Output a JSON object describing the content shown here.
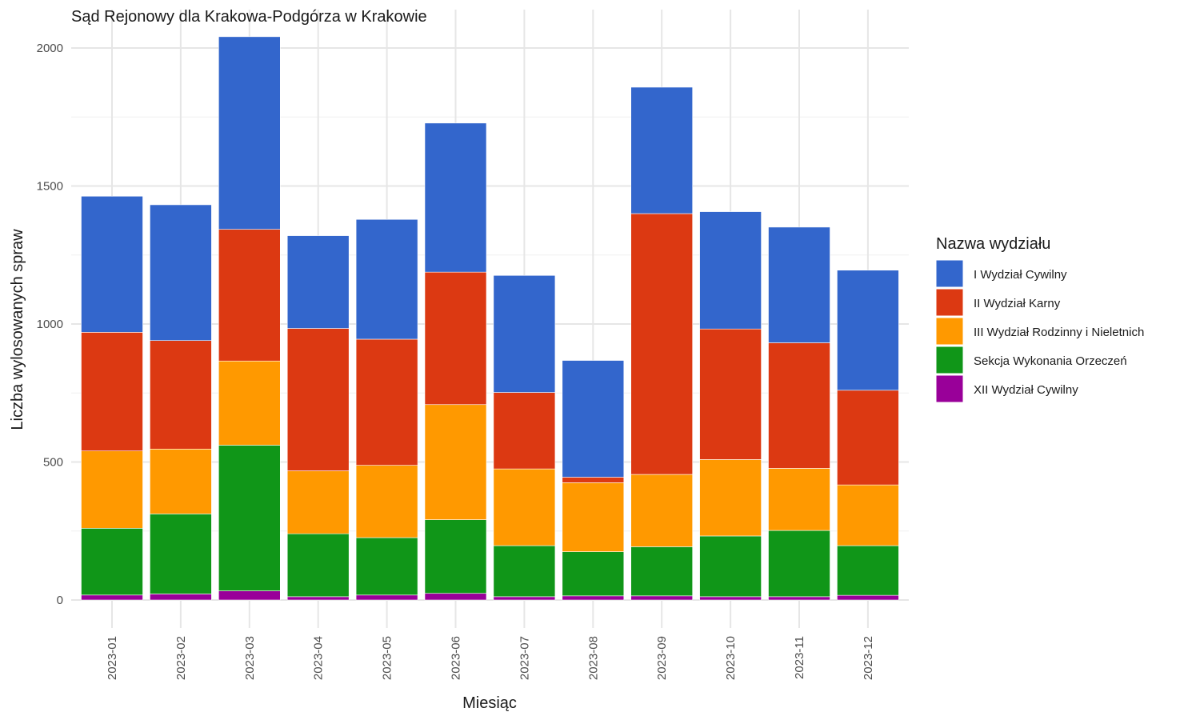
{
  "chart_data": {
    "type": "bar",
    "stacked": true,
    "title": "Sąd Rejonowy dla Krakowa-Podgórza w Krakowie",
    "xlabel": "Miesiąc",
    "ylabel": "Liczba wylosowanych spraw",
    "ylim": [
      0,
      2100
    ],
    "yticks": [
      0,
      500,
      1000,
      1500,
      2000
    ],
    "grid": true,
    "legend_title": "Nazwa wydziału",
    "legend_position": "right",
    "categories": [
      "2023-01",
      "2023-02",
      "2023-03",
      "2023-04",
      "2023-05",
      "2023-06",
      "2023-07",
      "2023-08",
      "2023-09",
      "2023-10",
      "2023-11",
      "2023-12"
    ],
    "series": [
      {
        "name": "XII Wydział Cywilny",
        "color": "#990099",
        "values": [
          18,
          22,
          33,
          12,
          18,
          24,
          12,
          15,
          15,
          12,
          12,
          17
        ]
      },
      {
        "name": "Sekcja Wykonania Orzeczeń",
        "color": "#109618",
        "values": [
          242,
          290,
          528,
          228,
          208,
          267,
          185,
          160,
          178,
          220,
          240,
          180
        ]
      },
      {
        "name": "III Wydział Rodzinny i Nieletnich",
        "color": "#FF9900",
        "values": [
          280,
          235,
          305,
          228,
          262,
          417,
          278,
          250,
          262,
          277,
          225,
          220
        ]
      },
      {
        "name": "II Wydział Karny",
        "color": "#DC3912",
        "values": [
          430,
          393,
          477,
          516,
          457,
          480,
          277,
          20,
          945,
          473,
          455,
          343
        ]
      },
      {
        "name": "I Wydział Cywilny",
        "color": "#3366CC",
        "values": [
          493,
          492,
          698,
          336,
          434,
          540,
          424,
          423,
          458,
          425,
          419,
          435
        ]
      }
    ],
    "legend_order": [
      "I Wydział Cywilny",
      "II Wydział Karny",
      "III Wydział Rodzinny i Nieletnich",
      "Sekcja Wykonania Orzeczeń",
      "XII Wydział Cywilny"
    ]
  }
}
